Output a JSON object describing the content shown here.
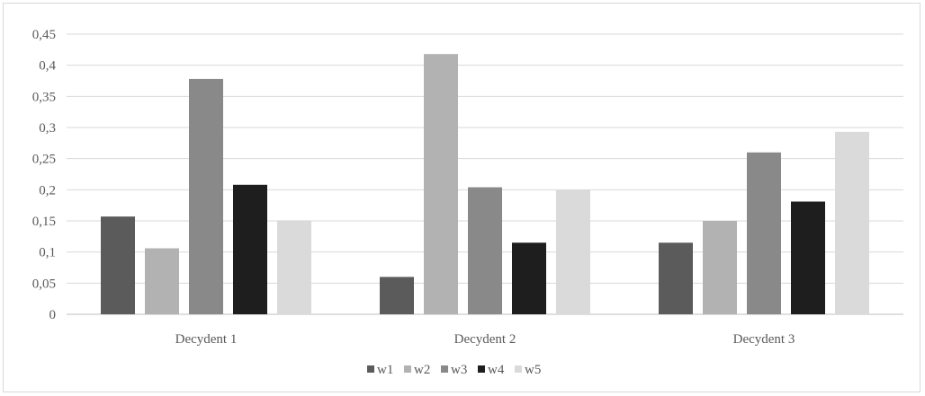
{
  "chart_data": {
    "type": "bar",
    "categories": [
      "Decydent 1",
      "Decydent 2",
      "Decydent 3"
    ],
    "series": [
      {
        "name": "w1",
        "color": "#5b5b5b",
        "values": [
          0.157,
          0.06,
          0.115
        ]
      },
      {
        "name": "w2",
        "color": "#b2b2b2",
        "values": [
          0.106,
          0.418,
          0.15
        ]
      },
      {
        "name": "w3",
        "color": "#898989",
        "values": [
          0.378,
          0.204,
          0.26
        ]
      },
      {
        "name": "w4",
        "color": "#1e1e1e",
        "values": [
          0.208,
          0.115,
          0.181
        ]
      },
      {
        "name": "w5",
        "color": "#dadada",
        "values": [
          0.151,
          0.2,
          0.293
        ]
      }
    ],
    "yticks": [
      "0",
      "0,05",
      "0,1",
      "0,15",
      "0,2",
      "0,25",
      "0,3",
      "0,35",
      "0,4",
      "0,45"
    ],
    "ylim": [
      0,
      0.45
    ],
    "grid": true,
    "legend": "bottom"
  }
}
